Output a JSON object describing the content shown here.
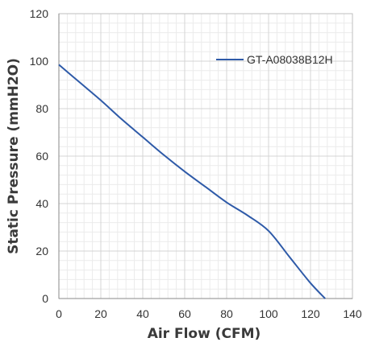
{
  "chart_data": {
    "type": "line",
    "xlabel": "Air Flow (CFM)",
    "ylabel": "Static Pressure (mmH2O)",
    "xlim": [
      0,
      140
    ],
    "ylim": [
      0,
      120
    ],
    "x_ticks": [
      "0",
      "20",
      "40",
      "60",
      "80",
      "100",
      "120",
      "140"
    ],
    "y_ticks": [
      "0",
      "20",
      "40",
      "60",
      "80",
      "100",
      "120"
    ],
    "grid": true,
    "minor_grid": true,
    "legend_position": "top-right",
    "series": [
      {
        "name": "GT-A08038B12H",
        "color": "#2e5aa8",
        "x": [
          0,
          10,
          20,
          30,
          40,
          50,
          60,
          70,
          80,
          90,
          100,
          110,
          120,
          127
        ],
        "y": [
          98.5,
          91,
          83.5,
          75.5,
          68,
          60.5,
          53.5,
          47,
          40.5,
          35,
          28.5,
          17.5,
          6.5,
          0
        ]
      }
    ]
  }
}
